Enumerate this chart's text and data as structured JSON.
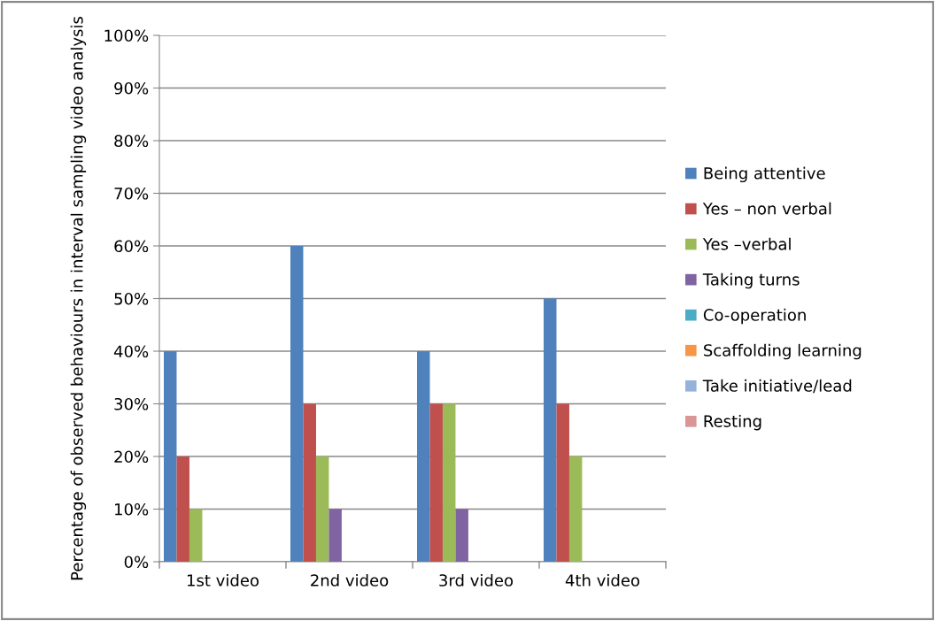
{
  "chart_data": {
    "type": "bar",
    "ylabel": "Percentage of observed behaviours in interval sampling video analysis",
    "categories": [
      "1st video",
      "2nd video",
      "3rd video",
      "4th video"
    ],
    "series": [
      {
        "name": "Being attentive",
        "color": "#4f81bd",
        "values": [
          40,
          60,
          40,
          50
        ]
      },
      {
        "name": "Yes – non verbal",
        "color": "#c0504d",
        "values": [
          20,
          30,
          30,
          30
        ]
      },
      {
        "name": "Yes –verbal",
        "color": "#9bbb59",
        "values": [
          10,
          20,
          30,
          20
        ]
      },
      {
        "name": "Taking turns",
        "color": "#8064a2",
        "values": [
          0,
          10,
          10,
          0
        ]
      },
      {
        "name": "Co-operation",
        "color": "#4bacc6",
        "values": [
          0,
          0,
          0,
          0
        ]
      },
      {
        "name": "Scaffolding learning",
        "color": "#f79646",
        "values": [
          0,
          0,
          0,
          0
        ]
      },
      {
        "name": "Take initiative/lead",
        "color": "#95b3d7",
        "values": [
          0,
          0,
          0,
          0
        ]
      },
      {
        "name": "Resting",
        "color": "#d99694",
        "values": [
          0,
          0,
          0,
          0
        ]
      }
    ],
    "ylim": [
      0,
      100
    ],
    "yticks": [
      {
        "value": 0,
        "label": "0%"
      },
      {
        "value": 10,
        "label": "10%"
      },
      {
        "value": 20,
        "label": "20%"
      },
      {
        "value": 30,
        "label": "30%"
      },
      {
        "value": 40,
        "label": "40%"
      },
      {
        "value": 50,
        "label": "50%"
      },
      {
        "value": 60,
        "label": "60%"
      },
      {
        "value": 70,
        "label": "70%"
      },
      {
        "value": 80,
        "label": "80%"
      },
      {
        "value": 90,
        "label": "90%"
      },
      {
        "value": 100,
        "label": "100%"
      }
    ],
    "grid": "y",
    "legend": "right"
  }
}
